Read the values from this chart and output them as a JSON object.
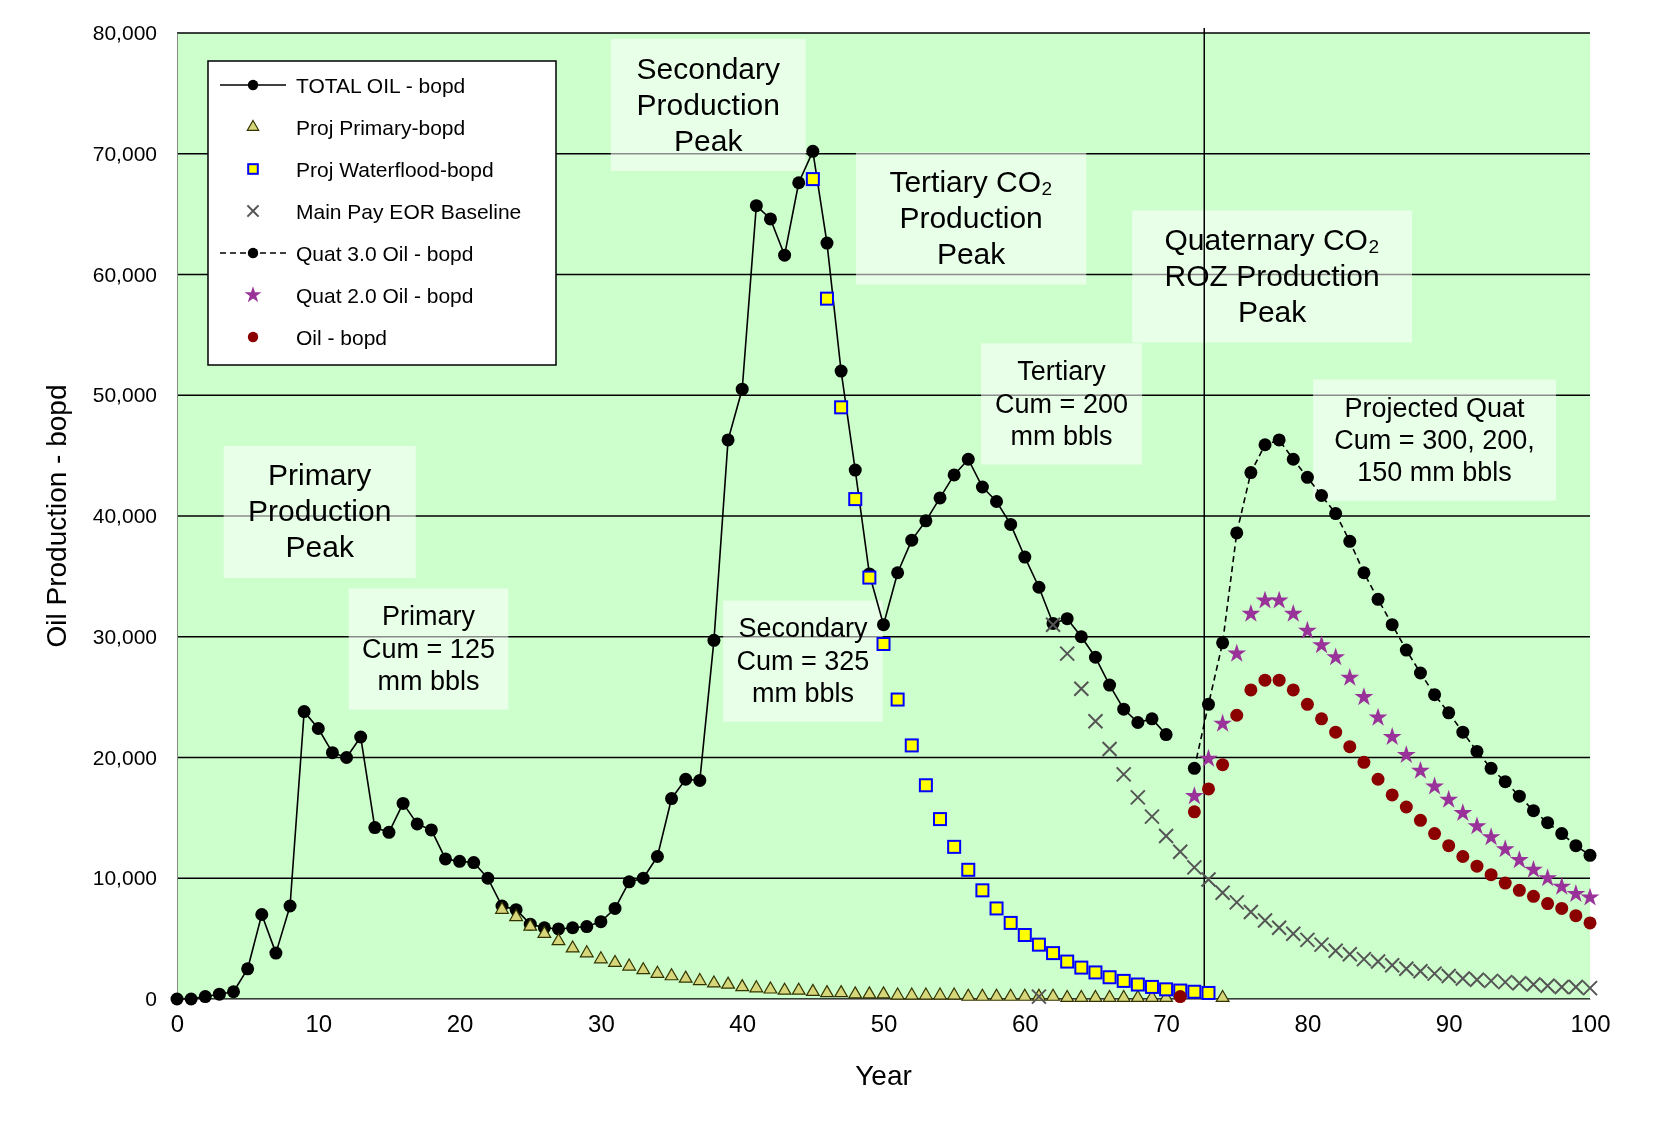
{
  "chart_data": {
    "type": "line",
    "xlabel": "Year",
    "ylabel": "Oil Production - bopd",
    "xlim": [
      0,
      100
    ],
    "xticks": [
      0,
      10,
      20,
      30,
      40,
      50,
      60,
      70,
      80,
      90,
      100
    ],
    "ylim": [
      0,
      80000
    ],
    "yticks": [
      0,
      {
        "value": 10000,
        "label": "10,000"
      },
      {
        "value": 20000,
        "label": "20,000"
      },
      {
        "value": 30000,
        "label": "30,000"
      },
      {
        "value": 40000,
        "label": "40,000"
      },
      {
        "value": 50000,
        "label": "50,000"
      },
      {
        "value": 60000,
        "label": "60,000"
      },
      {
        "value": 70000,
        "label": "70,000"
      },
      {
        "value": 80000,
        "label": "80,000"
      }
    ],
    "grid": "y",
    "legend": "top left",
    "ref_lines": [
      {
        "axis": "x",
        "value": 72.7,
        "color": "#000000"
      }
    ],
    "annotations": [
      "Secondary Production Peak",
      "Tertiary CO₂ Production Peak",
      "Quaternary CO₂ ROZ Production Peak",
      "Tertiary Cum = 200 mm bbls",
      "Projected Quat Cum = 300, 200, 150 mm bbls",
      "Primary Production Peak",
      "Primary Cum = 125 mm bbls",
      "Secondary Cum = 325 mm bbls"
    ],
    "series": [
      {
        "name": "TOTAL OIL - bopd",
        "marker": "circle",
        "line_style": "solid",
        "color": "#000000",
        "x": [
          0,
          1,
          2,
          3,
          4,
          5,
          6,
          7,
          8,
          9,
          10,
          11,
          12,
          13,
          14,
          15,
          16,
          17,
          18,
          19,
          20,
          21,
          22,
          23,
          24,
          25,
          26,
          27,
          28,
          29,
          30,
          31,
          32,
          33,
          34,
          35,
          36,
          37,
          38,
          39,
          40,
          41,
          42,
          43,
          44,
          45,
          46,
          47,
          48,
          49,
          50,
          51,
          52,
          53,
          54,
          55,
          56,
          57,
          58,
          59,
          60,
          61,
          62,
          63,
          64,
          65,
          66,
          67,
          68,
          69,
          70
        ],
        "values": [
          0,
          0,
          200,
          400,
          600,
          2500,
          7000,
          3800,
          7700,
          23800,
          22400,
          20400,
          20000,
          21700,
          14200,
          13800,
          16200,
          14500,
          14000,
          11600,
          11400,
          11300,
          10000,
          7700,
          7400,
          6200,
          5900,
          5800,
          5900,
          6000,
          6400,
          7500,
          9700,
          10000,
          11800,
          16600,
          18200,
          18100,
          29700,
          46300,
          50500,
          65700,
          64600,
          61600,
          67600,
          70200,
          62600,
          52000,
          43800,
          35200,
          31000,
          35300,
          38000,
          39600,
          41500,
          43400,
          44700,
          42400,
          41200,
          39300,
          36600,
          34100,
          31100,
          31500,
          30000,
          28300,
          26000,
          24000,
          22900,
          23200,
          21900
        ]
      },
      {
        "name": "Proj Primary-bopd",
        "type": "scatter",
        "marker": "triangle",
        "color": "#d6d67a",
        "x": [
          23,
          24,
          25,
          26,
          27,
          28,
          29,
          30,
          31,
          32,
          33,
          34,
          35,
          36,
          37,
          38,
          39,
          40,
          41,
          42,
          43,
          44,
          45,
          46,
          47,
          48,
          49,
          50,
          51,
          52,
          53,
          54,
          55,
          56,
          57,
          58,
          59,
          60,
          61,
          62,
          63,
          64,
          65,
          66,
          67,
          68,
          69,
          70,
          74
        ],
        "values": [
          7400,
          6800,
          6000,
          5400,
          4800,
          4200,
          3800,
          3300,
          3000,
          2700,
          2400,
          2100,
          1900,
          1700,
          1500,
          1300,
          1200,
          1000,
          900,
          800,
          700,
          700,
          600,
          500,
          500,
          400,
          400,
          400,
          300,
          300,
          300,
          300,
          300,
          200,
          200,
          200,
          200,
          200,
          200,
          200,
          100,
          100,
          100,
          100,
          100,
          100,
          100,
          100,
          100
        ]
      },
      {
        "name": "Proj Waterflood-bopd",
        "type": "scatter",
        "marker": "square",
        "color": "#ffff00",
        "x": [
          45,
          46,
          47,
          48,
          49,
          50,
          51,
          52,
          53,
          54,
          55,
          56,
          57,
          58,
          59,
          60,
          61,
          62,
          63,
          64,
          65,
          66,
          67,
          68,
          69,
          70,
          71,
          72,
          73
        ],
        "values": [
          67900,
          58000,
          49000,
          41400,
          34900,
          29400,
          24800,
          21000,
          17700,
          14900,
          12600,
          10700,
          9000,
          7500,
          6300,
          5300,
          4500,
          3800,
          3100,
          2600,
          2200,
          1800,
          1500,
          1200,
          1000,
          800,
          700,
          600,
          500
        ]
      },
      {
        "name": "Main Pay EOR Baseline",
        "type": "scatter",
        "marker": "cross",
        "color": "#555555",
        "x": [
          61,
          62,
          63,
          64,
          65,
          66,
          67,
          68,
          69,
          70,
          71,
          72,
          73,
          74,
          75,
          76,
          77,
          78,
          79,
          80,
          81,
          82,
          83,
          84,
          85,
          86,
          87,
          88,
          89,
          90,
          91,
          92,
          93,
          94,
          95,
          96,
          97,
          98,
          99,
          100
        ],
        "values": [
          200,
          31000,
          28600,
          25700,
          23000,
          20700,
          18600,
          16700,
          15100,
          13500,
          12200,
          10900,
          9900,
          8800,
          8000,
          7200,
          6500,
          5900,
          5400,
          4900,
          4500,
          4000,
          3700,
          3300,
          3100,
          2800,
          2500,
          2300,
          2100,
          1900,
          1700,
          1600,
          1500,
          1400,
          1300,
          1200,
          1100,
          1000,
          1000,
          900
        ]
      },
      {
        "name": "Quat 3.0 Oil - bopd",
        "marker": "circle",
        "line_style": "dashed",
        "color": "#000000",
        "x": [
          72,
          73,
          74,
          75,
          76,
          77,
          78,
          79,
          80,
          81,
          82,
          83,
          84,
          85,
          86,
          87,
          88,
          89,
          90,
          91,
          92,
          93,
          94,
          95,
          96,
          97,
          98,
          99,
          100
        ],
        "values": [
          19100,
          24400,
          29500,
          38600,
          43600,
          45900,
          46300,
          44700,
          43200,
          41700,
          40200,
          37900,
          35300,
          33100,
          31000,
          28900,
          27000,
          25200,
          23700,
          22100,
          20500,
          19100,
          18000,
          16800,
          15600,
          14600,
          13700,
          12700,
          11900
        ]
      },
      {
        "name": "Quat 2.0 Oil - bopd",
        "type": "scatter",
        "marker": "star",
        "color": "#993399",
        "x": [
          72,
          73,
          74,
          75,
          76,
          77,
          78,
          79,
          80,
          81,
          82,
          83,
          84,
          85,
          86,
          87,
          88,
          89,
          90,
          91,
          92,
          93,
          94,
          95,
          96,
          97,
          98,
          99,
          100
        ],
        "values": [
          16800,
          19900,
          22800,
          28600,
          31900,
          33000,
          33000,
          31900,
          30500,
          29300,
          28300,
          26600,
          25000,
          23300,
          21700,
          20200,
          18900,
          17600,
          16500,
          15400,
          14300,
          13400,
          12400,
          11500,
          10700,
          10000,
          9300,
          8700,
          8400
        ]
      },
      {
        "name": "Oil - bopd",
        "type": "scatter",
        "marker": "circle",
        "color": "#8b0000",
        "x": [
          71,
          72,
          73,
          74,
          75,
          76,
          77,
          78,
          79,
          80,
          81,
          82,
          83,
          84,
          85,
          86,
          87,
          88,
          89,
          90,
          91,
          92,
          93,
          94,
          95,
          96,
          97,
          98,
          99,
          100
        ],
        "values": [
          200,
          15500,
          17400,
          19400,
          23500,
          25600,
          26400,
          26400,
          25600,
          24400,
          23200,
          22100,
          20900,
          19600,
          18200,
          16900,
          15900,
          14800,
          13700,
          12700,
          11800,
          11000,
          10300,
          9600,
          9000,
          8500,
          7900,
          7500,
          6900,
          6300
        ]
      }
    ]
  }
}
